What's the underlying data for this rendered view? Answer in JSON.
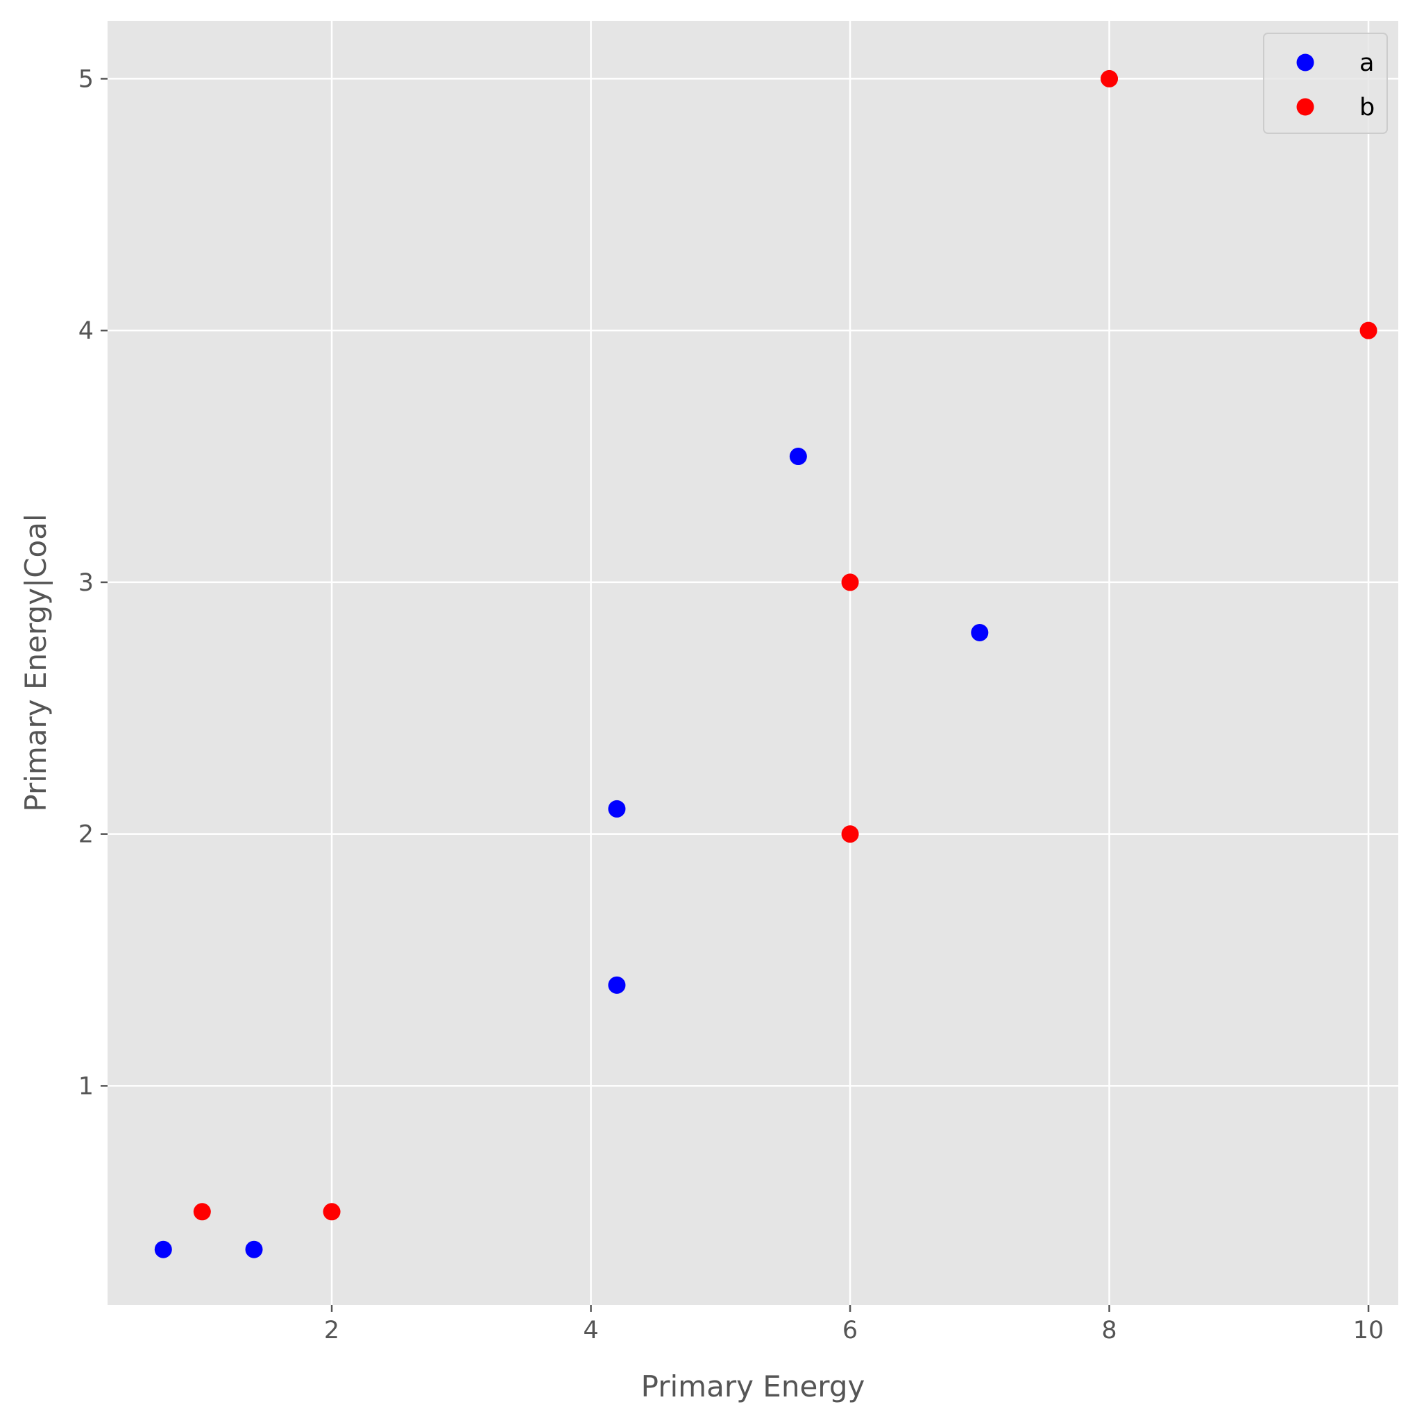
{
  "chart_data": {
    "type": "scatter",
    "xlabel": "Primary Energy",
    "ylabel": "Primary Energy|Coal",
    "xlim": [
      0.27,
      10.23
    ],
    "ylim": [
      0.13,
      5.23
    ],
    "xticks": [
      "2",
      "4",
      "6",
      "8",
      "10"
    ],
    "yticks": [
      "1",
      "2",
      "3",
      "4",
      "5"
    ],
    "grid": true,
    "legend_position": "top-right",
    "series": [
      {
        "name": "a",
        "color": "#0000ff",
        "points": [
          {
            "x": 0.7,
            "y": 0.35
          },
          {
            "x": 1.4,
            "y": 0.35
          },
          {
            "x": 4.2,
            "y": 1.4
          },
          {
            "x": 4.2,
            "y": 2.1
          },
          {
            "x": 5.6,
            "y": 3.5
          },
          {
            "x": 7.0,
            "y": 2.8
          }
        ]
      },
      {
        "name": "b",
        "color": "#ff0000",
        "points": [
          {
            "x": 1.0,
            "y": 0.5
          },
          {
            "x": 2.0,
            "y": 0.5
          },
          {
            "x": 6.0,
            "y": 2.0
          },
          {
            "x": 6.0,
            "y": 3.0
          },
          {
            "x": 8.0,
            "y": 5.0
          },
          {
            "x": 10.0,
            "y": 4.0
          }
        ]
      }
    ],
    "background_color": "#e5e5e5",
    "grid_color": "#ffffff"
  }
}
